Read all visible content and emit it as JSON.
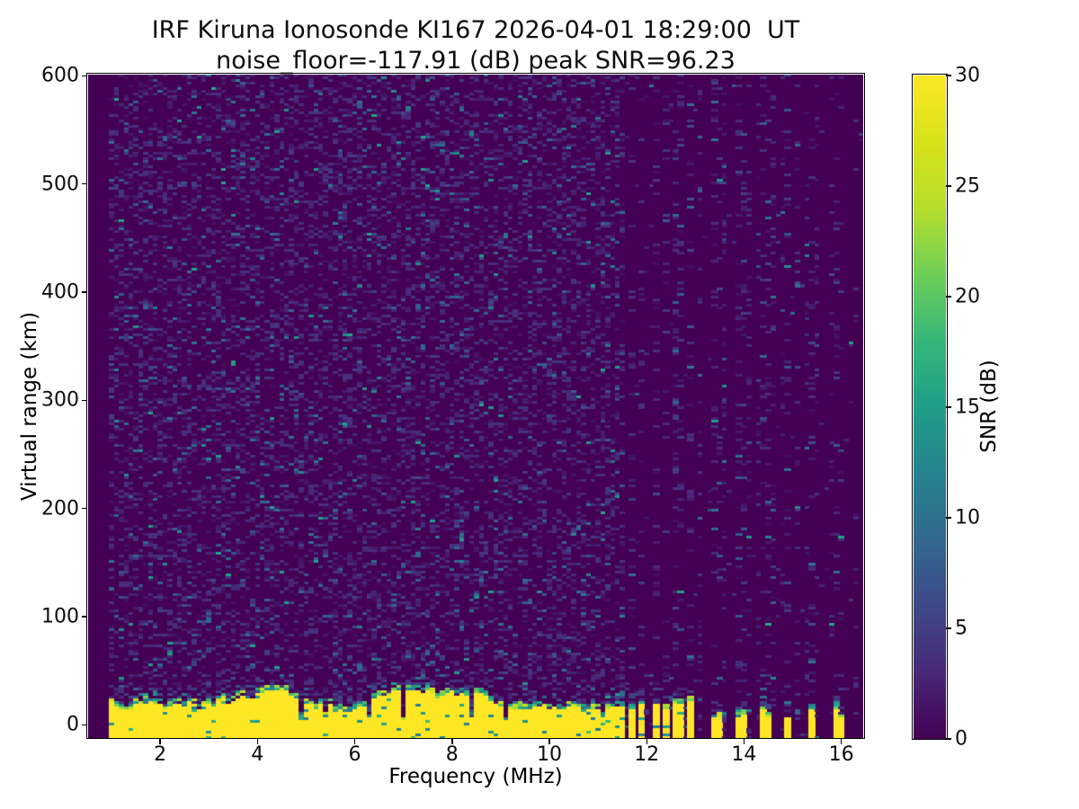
{
  "figure": {
    "title_line1": "IRF Kiruna Ionosonde KI167 2026-04-01 18:29:00  UT",
    "title_line2": "noise_floor=-117.91 (dB) peak SNR=96.23",
    "background": "#ffffff"
  },
  "chart_data": {
    "type": "heatmap",
    "title": "IRF Kiruna Ionosonde KI167 2026-04-01 18:29:00  UT",
    "subtitle": "noise_floor=-117.91 (dB) peak SNR=96.23",
    "station": "IRF Kiruna Ionosonde KI167",
    "timestamp_ut": "2026-04-01 18:29:00",
    "noise_floor_db": -117.91,
    "peak_snr_db": 96.23,
    "xlabel": "Frequency (MHz)",
    "ylabel": "Virtual range (km)",
    "xlim": [
      0.52,
      16.45
    ],
    "ylim": [
      -13,
      601
    ],
    "x_ticks": [
      2,
      4,
      6,
      8,
      10,
      12,
      14,
      16
    ],
    "y_ticks": [
      0,
      100,
      200,
      300,
      400,
      500,
      600
    ],
    "grid": false,
    "legend": "none",
    "colorbar": {
      "label": "SNR (dB)",
      "ticks": [
        0,
        5,
        10,
        15,
        20,
        25,
        30
      ],
      "vmin": 0,
      "vmax": 30,
      "colormap": "viridis",
      "position": "right"
    },
    "content_summary": {
      "background": "dark purple (0 dB SNR) field with sparse faint blue/teal noise speckle over full 0-600 km range",
      "ground_echo_band": "saturated yellow (>=30 dB) ground/clutter echo from bottom of plot up to ~10-30 km, jagged green-teal upper edge, spanning 1.0-11.6 MHz, with occasional narrow dark notches",
      "striped_region": "between ~11.7 and ~13.0 MHz the low-altitude echo breaks into regular yellow vertical stripes (~0.24 MHz period)",
      "sparse_echo_columns": "isolated short yellow echo columns near 13.45, 13.95, 14.45, 14.9, 15.4, 15.95 MHz",
      "rfi_columns": "above ~11.6 MHz noise speckle is confined to periodic vertical carrier columns (~0.24 MHz spacing), quiet background between them",
      "clean_left_margin": "no data between axis left edge (~0.52 MHz) and first sounding at 1.0 MHz"
    },
    "render": {
      "seed": 20260401,
      "freq_start_mhz": 1.0,
      "freq_end_mhz": 16.4,
      "freq_step_mhz": 0.1,
      "range_step_km": 2.5,
      "ground_echo_max_freq_mhz": 11.57,
      "ground_top_min_km": 10,
      "ground_top_max_km": 30,
      "ground_notch_prob": 0.08,
      "dense_stripes_mhz": [
        11.7,
        11.94,
        12.18,
        12.42,
        12.66,
        12.9
      ],
      "sparse_stripes_mhz": [
        13.45,
        13.95,
        14.45,
        14.9,
        15.4,
        15.95
      ],
      "rfi_carrier_start_mhz": 11.7,
      "rfi_carrier_spacing_mhz": 0.24,
      "noise_speckle_prob": 0.3,
      "quiet_speckle_prob": 0.012,
      "gap_bottom_speckle_prob": 0.18,
      "viridis_stops": [
        [
          0.0,
          "#440154"
        ],
        [
          0.1,
          "#482878"
        ],
        [
          0.2,
          "#3e4989"
        ],
        [
          0.3,
          "#31688e"
        ],
        [
          0.4,
          "#26828e"
        ],
        [
          0.5,
          "#1f9e89"
        ],
        [
          0.6,
          "#35b779"
        ],
        [
          0.7,
          "#6ece58"
        ],
        [
          0.8,
          "#b5de2b"
        ],
        [
          0.9,
          "#d8e219"
        ],
        [
          1.0,
          "#fde725"
        ]
      ]
    }
  }
}
